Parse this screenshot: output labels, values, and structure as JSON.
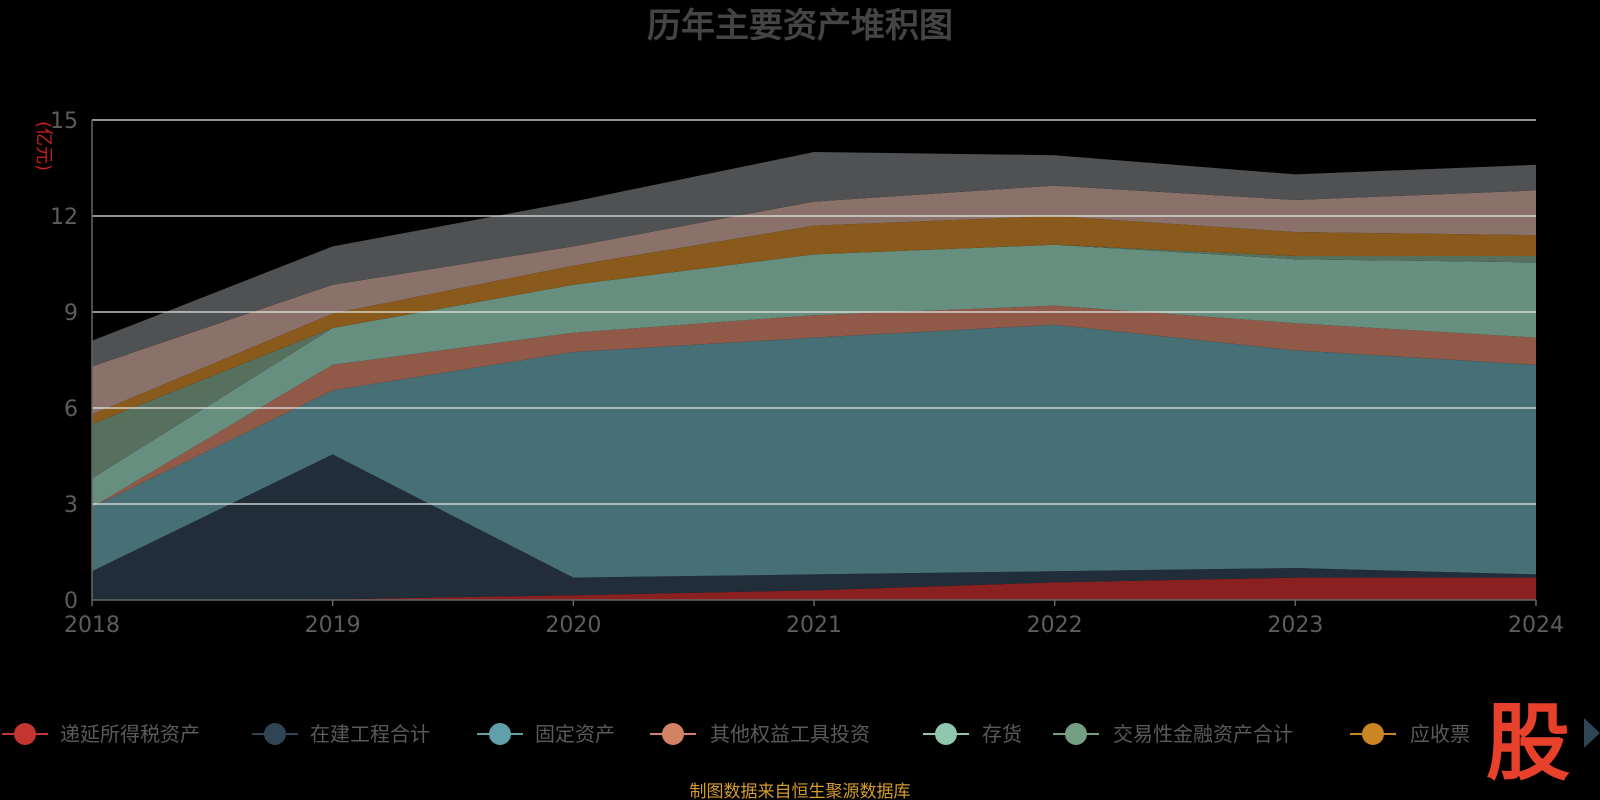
{
  "chart_data": {
    "type": "area",
    "title": "历年主要资产堆积图",
    "unit_label": "(亿元)",
    "x": [
      "2018",
      "2019",
      "2020",
      "2021",
      "2022",
      "2023",
      "2024"
    ],
    "y_ticks": [
      "0",
      "3",
      "6",
      "9",
      "12",
      "15"
    ],
    "ylim": [
      0,
      15
    ],
    "grid": true,
    "legend_position": "bottom",
    "stacked": true,
    "series": [
      {
        "name": "递延所得税资产",
        "legend_color": "#c23531",
        "fill": "#8b2020",
        "values": [
          0.0,
          0.02,
          0.15,
          0.3,
          0.55,
          0.7,
          0.7
        ]
      },
      {
        "name": "在建工程合计",
        "legend_color": "#2f4554",
        "fill": "#212e39",
        "values": [
          0.9,
          4.53,
          0.55,
          0.5,
          0.35,
          0.3,
          0.1
        ]
      },
      {
        "name": "固定资产",
        "legend_color": "#61a0a8",
        "fill": "#466f76",
        "values": [
          2.0,
          2.0,
          7.05,
          7.4,
          7.7,
          6.8,
          6.55
        ]
      },
      {
        "name": "其他权益工具投资",
        "legend_color": "#d48265",
        "fill": "#915a48",
        "values": [
          0.0,
          0.8,
          0.6,
          0.7,
          0.6,
          0.85,
          0.85
        ]
      },
      {
        "name": "存货",
        "legend_color": "#91c7ae",
        "fill": "#678f7f",
        "values": [
          0.9,
          1.15,
          1.5,
          1.9,
          1.9,
          2.0,
          2.35
        ]
      },
      {
        "name": "交易性金融资产合计",
        "legend_color": "#749f83",
        "fill": "#57705d",
        "values": [
          1.7,
          0.0,
          0.0,
          0.0,
          0.0,
          0.1,
          0.2
        ]
      },
      {
        "name": "应收票据",
        "legend_color": "#ca8622",
        "fill": "#8a5a1c",
        "values": [
          0.3,
          0.45,
          0.6,
          0.9,
          0.9,
          0.75,
          0.65
        ]
      },
      {
        "name": "",
        "legend_color": "#8a726a",
        "fill": "#8a726a",
        "values": [
          1.5,
          0.9,
          0.6,
          0.75,
          0.95,
          1.0,
          1.4
        ]
      },
      {
        "name": "",
        "legend_color": "#505153",
        "fill": "#505153",
        "values": [
          0.8,
          1.2,
          1.4,
          1.55,
          0.95,
          0.8,
          0.8
        ]
      }
    ]
  },
  "legend_visible_count": 7,
  "legend_overflow_label": "应收票",
  "source_note": "制图数据来自恒生聚源数据库",
  "brand_mark": "股",
  "colors": {
    "background": "#000000",
    "grid": "#e6e6e6"
  }
}
